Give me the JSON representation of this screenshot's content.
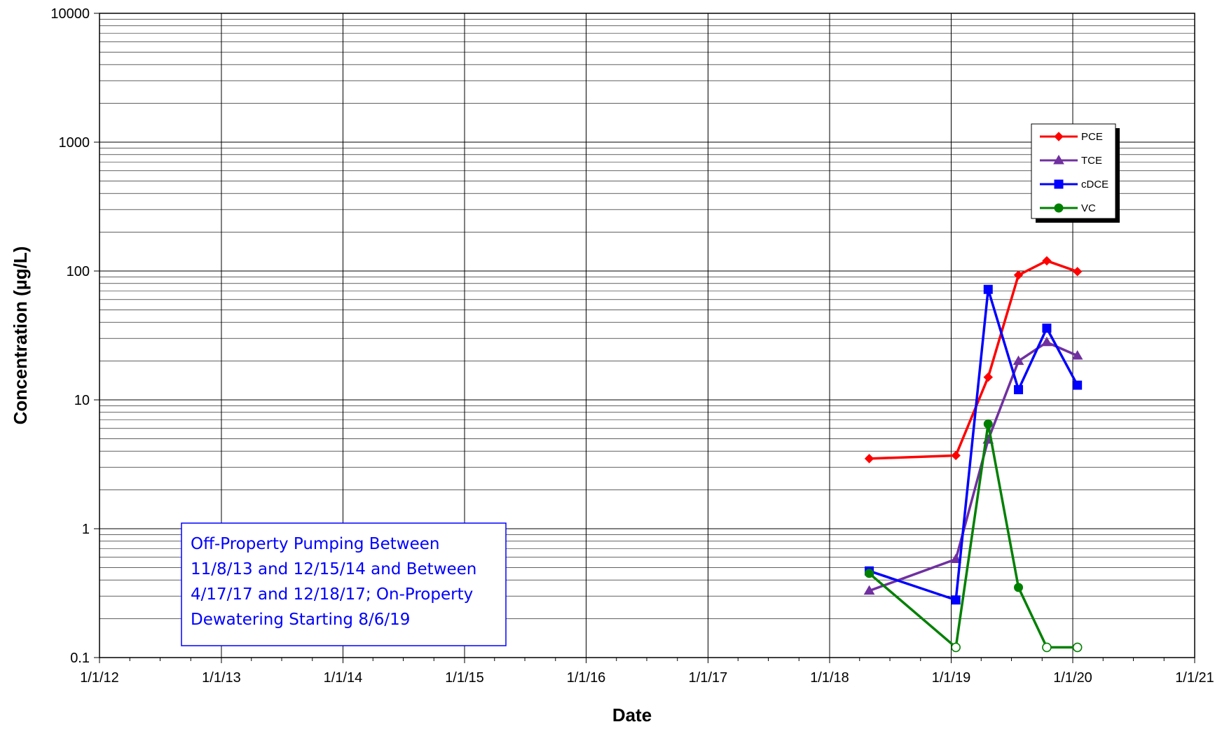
{
  "chart_data": {
    "type": "line",
    "title": "",
    "xlabel": "Date",
    "ylabel": "Concentration (µg/L)",
    "x_axis": {
      "type": "date",
      "range": [
        "2012-01-01",
        "2021-01-01"
      ],
      "tick_labels": [
        "1/1/12",
        "1/1/13",
        "1/1/14",
        "1/1/15",
        "1/1/16",
        "1/1/17",
        "1/1/18",
        "1/1/19",
        "1/1/20",
        "1/1/21"
      ],
      "tick_dates": [
        "2012-01-01",
        "2013-01-01",
        "2014-01-01",
        "2015-01-01",
        "2016-01-01",
        "2017-01-01",
        "2018-01-01",
        "2019-01-01",
        "2020-01-01",
        "2021-01-01"
      ],
      "minor_ticks": "quarterly"
    },
    "y_axis": {
      "scale": "log",
      "range": [
        0.1,
        10000
      ],
      "tick_labels": [
        "0.1",
        "1",
        "10",
        "100",
        "1000",
        "10000"
      ],
      "tick_values": [
        0.1,
        1,
        10,
        100,
        1000,
        10000
      ]
    },
    "grid": true,
    "legend": {
      "position": "top-right"
    },
    "series": [
      {
        "name": "PCE",
        "color": "#ff0000",
        "marker": "diamond",
        "points": [
          {
            "x": "2018-04-30",
            "y": 3.5
          },
          {
            "x": "2019-01-15",
            "y": 3.7
          },
          {
            "x": "2019-04-22",
            "y": 15
          },
          {
            "x": "2019-07-22",
            "y": 93
          },
          {
            "x": "2019-10-15",
            "y": 120
          },
          {
            "x": "2020-01-15",
            "y": 99
          }
        ]
      },
      {
        "name": "TCE",
        "color": "#7030a0",
        "marker": "triangle",
        "points": [
          {
            "x": "2018-04-30",
            "y": 0.33
          },
          {
            "x": "2019-01-15",
            "y": 0.58
          },
          {
            "x": "2019-04-22",
            "y": 4.9
          },
          {
            "x": "2019-07-22",
            "y": 20
          },
          {
            "x": "2019-10-15",
            "y": 28
          },
          {
            "x": "2020-01-15",
            "y": 22
          }
        ]
      },
      {
        "name": "cDCE",
        "color": "#0000ff",
        "marker": "square",
        "points": [
          {
            "x": "2018-04-30",
            "y": 0.47
          },
          {
            "x": "2019-01-15",
            "y": 0.28
          },
          {
            "x": "2019-04-22",
            "y": 72
          },
          {
            "x": "2019-07-22",
            "y": 12
          },
          {
            "x": "2019-10-15",
            "y": 36
          },
          {
            "x": "2020-01-15",
            "y": 13
          }
        ]
      },
      {
        "name": "VC",
        "color": "#008000",
        "marker": "circle",
        "points": [
          {
            "x": "2018-04-30",
            "y": 0.45,
            "detected": true
          },
          {
            "x": "2019-01-15",
            "y": 0.12,
            "detected": false
          },
          {
            "x": "2019-04-22",
            "y": 6.5,
            "detected": true
          },
          {
            "x": "2019-07-22",
            "y": 0.35,
            "detected": true
          },
          {
            "x": "2019-10-15",
            "y": 0.12,
            "detected": false
          },
          {
            "x": "2020-01-15",
            "y": 0.12,
            "detected": false
          }
        ]
      }
    ],
    "annotations": [
      {
        "lines": [
          "Off-Property Pumping Between",
          "11/8/13 and 12/15/14 and Between",
          "4/17/17 and 12/18/17; On-Property",
          "Dewatering Starting 8/6/19"
        ],
        "color": "#0000ff"
      }
    ]
  }
}
